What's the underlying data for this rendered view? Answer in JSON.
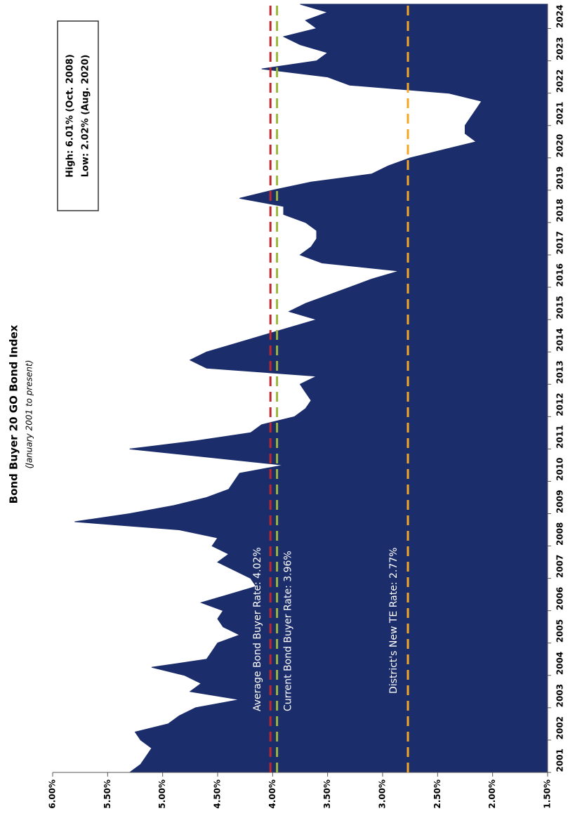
{
  "chart_data": {
    "type": "area",
    "title": "Bond Buyer 20 GO Bond Index",
    "subtitle": "(January 2001 to present)",
    "annotation_lines": [
      "High: 6.01% (Oct. 2008)",
      "Low: 2.02% (Aug. 2020)"
    ],
    "color": "#1b2d6b",
    "categories": [
      "2001",
      null,
      null,
      null,
      "2002",
      null,
      null,
      null,
      "2003",
      null,
      null,
      null,
      "2004",
      null,
      null,
      null,
      "2005",
      null,
      null,
      null,
      "2006",
      null,
      null,
      null,
      "2007",
      null,
      null,
      null,
      "2008",
      null,
      null,
      null,
      "2009",
      null,
      null,
      null,
      "2010",
      null,
      null,
      null,
      "2011",
      null,
      null,
      null,
      "2012",
      null,
      null,
      null,
      "2013",
      null,
      null,
      null,
      "2014",
      null,
      null,
      null,
      "2015",
      null,
      null,
      null,
      "2016",
      null,
      null,
      null,
      "2017",
      null,
      null,
      null,
      "2018",
      null,
      null,
      null,
      "2019",
      null,
      null,
      null,
      "2020",
      null,
      null,
      null,
      "2021",
      null,
      null,
      null,
      "2022",
      null,
      null,
      null,
      "2023",
      null,
      null,
      null,
      "2024",
      null,
      null,
      null
    ],
    "values": [
      5.3,
      5.2,
      5.15,
      5.1,
      5.2,
      5.25,
      4.95,
      4.85,
      4.7,
      4.3,
      4.75,
      4.65,
      4.8,
      5.1,
      4.6,
      4.55,
      4.5,
      4.3,
      4.45,
      4.5,
      4.45,
      4.65,
      4.4,
      4.15,
      4.2,
      4.35,
      4.5,
      4.4,
      4.55,
      4.5,
      4.85,
      5.8,
      5.3,
      4.9,
      4.6,
      4.4,
      4.35,
      4.3,
      3.9,
      4.6,
      5.3,
      4.7,
      4.2,
      4.1,
      3.8,
      3.7,
      3.65,
      3.7,
      3.75,
      3.6,
      4.6,
      4.75,
      4.6,
      4.35,
      4.1,
      3.85,
      3.6,
      3.85,
      3.7,
      3.5,
      3.3,
      3.1,
      2.85,
      3.55,
      3.75,
      3.65,
      3.6,
      3.6,
      3.7,
      3.9,
      3.9,
      4.3,
      4.0,
      3.65,
      3.1,
      2.95,
      2.75,
      2.45,
      2.15,
      2.25,
      2.25,
      2.2,
      2.15,
      2.1,
      2.4,
      3.3,
      3.5,
      4.1,
      3.6,
      3.5,
      3.75,
      3.9,
      3.6,
      3.7,
      3.5,
      3.75
    ],
    "ylim": [
      1.5,
      6.0
    ],
    "yticks": [
      {
        "value": 6.0,
        "label": "6.00%"
      },
      {
        "value": 5.5,
        "label": "5.50%"
      },
      {
        "value": 5.0,
        "label": "5.00%"
      },
      {
        "value": 4.5,
        "label": "4.50%"
      },
      {
        "value": 4.0,
        "label": "4.00%"
      },
      {
        "value": 3.5,
        "label": "3.50%"
      },
      {
        "value": 3.0,
        "label": "3.00%"
      },
      {
        "value": 2.5,
        "label": "2.50%"
      },
      {
        "value": 2.0,
        "label": "2.00%"
      },
      {
        "value": 1.5,
        "label": "1.50%"
      }
    ],
    "reference_lines": [
      {
        "value": 4.02,
        "label": "Average Bond Buyer Rate: 4.02%",
        "color": "#c0282d"
      },
      {
        "value": 3.96,
        "label": "Current Bond Buyer Rate: 3.96%",
        "color": "#9bb63a"
      },
      {
        "value": 2.77,
        "label": "District's New TE Rate: 2.77%",
        "color": "#f5a623"
      }
    ]
  }
}
